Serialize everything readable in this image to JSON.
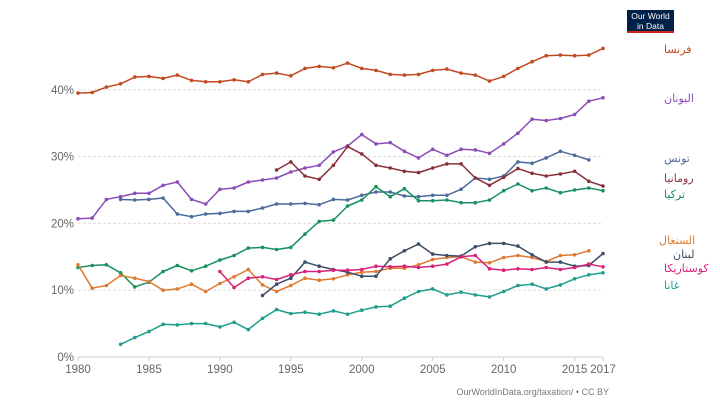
{
  "logo": {
    "line1": "Our World",
    "line2": "in Data"
  },
  "source": "OurWorldInData.org/taxation/ • CC BY",
  "chart_data": {
    "type": "line",
    "title": "",
    "xlabel": "",
    "ylabel": "",
    "xlim": [
      1980,
      2017
    ],
    "ylim": [
      0,
      45
    ],
    "grid": true,
    "x_ticks": [
      {
        "value": 1980,
        "label": "1980"
      },
      {
        "value": 1985,
        "label": "1985"
      },
      {
        "value": 1990,
        "label": "1990"
      },
      {
        "value": 1995,
        "label": "1995"
      },
      {
        "value": 2000,
        "label": "2000"
      },
      {
        "value": 2005,
        "label": "2005"
      },
      {
        "value": 2010,
        "label": "2010"
      },
      {
        "value": 2015,
        "label": "2015"
      },
      {
        "value": 2017,
        "label": "2017"
      }
    ],
    "y_ticks": [
      {
        "value": 0,
        "label": "0%"
      },
      {
        "value": 10,
        "label": "10%"
      },
      {
        "value": 20,
        "label": "20%"
      },
      {
        "value": 30,
        "label": "30%"
      },
      {
        "value": 40,
        "label": "40%"
      }
    ],
    "series": [
      {
        "name": "فرنسا",
        "color": "#c24a22",
        "start": 1980,
        "values": [
          39.5,
          39.6,
          40.4,
          40.9,
          41.9,
          42.0,
          41.7,
          42.2,
          41.4,
          41.2,
          41.2,
          41.5,
          41.2,
          42.3,
          42.5,
          42.1,
          43.2,
          43.5,
          43.3,
          44.0,
          43.2,
          42.9,
          42.3,
          42.2,
          42.3,
          42.9,
          43.1,
          42.5,
          42.2,
          41.3,
          42.0,
          43.2,
          44.2,
          45.1,
          45.2,
          45.1,
          45.2,
          46.2
        ]
      },
      {
        "name": "اليونان",
        "color": "#8a4cb5",
        "start": 1980,
        "values": [
          20.7,
          20.8,
          23.6,
          24.0,
          24.5,
          24.5,
          25.7,
          26.2,
          23.6,
          22.9,
          25.1,
          25.3,
          26.2,
          26.5,
          26.8,
          27.7,
          28.3,
          28.7,
          30.7,
          31.6,
          33.3,
          31.9,
          32.1,
          30.8,
          29.8,
          31.1,
          30.2,
          31.1,
          31.0,
          30.5,
          31.9,
          33.5,
          35.6,
          35.4,
          35.7,
          36.3,
          38.3,
          38.8
        ]
      },
      {
        "name": "تونس",
        "color": "#4c6a9c",
        "start": 1983,
        "values": [
          23.6,
          23.5,
          23.6,
          23.8,
          21.4,
          21.0,
          21.4,
          21.5,
          21.8,
          21.8,
          22.3,
          22.9,
          22.9,
          23.0,
          22.8,
          23.6,
          23.5,
          24.2,
          24.7,
          24.7,
          24.1,
          24.0,
          24.2,
          24.2,
          25.1,
          26.8,
          26.6,
          27.1,
          29.2,
          29.0,
          29.8,
          30.8,
          30.2,
          29.5
        ]
      },
      {
        "name": "رومانيا",
        "color": "#883039",
        "start": 1994,
        "values": [
          28.0,
          29.2,
          27.1,
          26.6,
          28.7,
          31.5,
          30.4,
          28.7,
          28.3,
          27.8,
          27.6,
          28.3,
          28.9,
          28.9,
          26.8,
          25.7,
          26.9,
          28.2,
          27.5,
          27.1,
          27.4,
          27.8,
          26.3,
          25.6
        ]
      },
      {
        "name": "تركيا",
        "color": "#18915e",
        "start": 1980,
        "values": [
          13.4,
          13.7,
          13.8,
          12.6,
          10.5,
          11.2,
          12.8,
          13.7,
          12.9,
          13.6,
          14.5,
          15.2,
          16.3,
          16.4,
          16.1,
          16.4,
          18.4,
          20.3,
          20.5,
          22.6,
          23.5,
          25.5,
          24.0,
          25.2,
          23.4,
          23.4,
          23.5,
          23.1,
          23.1,
          23.5,
          24.9,
          25.9,
          24.9,
          25.3,
          24.6,
          25.0,
          25.3,
          24.9
        ]
      },
      {
        "name": "السنغال",
        "color": "#e07a31",
        "start": 1980,
        "values": [
          13.8,
          10.3,
          10.7,
          12.2,
          11.8,
          11.3,
          10.0,
          10.2,
          10.9,
          9.8,
          11.0,
          12.0,
          13.1,
          10.8,
          9.8,
          10.7,
          11.8,
          11.5,
          11.7,
          12.3,
          12.7,
          12.8,
          13.3,
          13.3,
          13.8,
          14.6,
          14.9,
          15.0,
          14.2,
          14.1,
          14.9,
          15.2,
          14.9,
          14.3,
          15.2,
          15.3,
          15.9
        ]
      },
      {
        "name": "لبنان",
        "color": "#3c4e66",
        "start": 1993,
        "values": [
          9.2,
          10.9,
          11.8,
          14.2,
          13.6,
          13.1,
          12.7,
          12.1,
          12.1,
          14.7,
          15.9,
          16.9,
          15.4,
          15.2,
          15.1,
          16.5,
          17.0,
          17.0,
          16.6,
          15.3,
          14.2,
          14.2,
          13.6,
          13.7,
          15.5
        ]
      },
      {
        "name": "كوستاريكا",
        "color": "#d9207a",
        "start": 1990,
        "values": [
          12.8,
          10.4,
          11.8,
          12.0,
          11.6,
          12.3,
          12.8,
          12.8,
          13.0,
          13.0,
          13.1,
          13.6,
          13.5,
          13.6,
          13.4,
          13.6,
          13.9,
          15.0,
          15.2,
          13.2,
          13.0,
          13.2,
          13.1,
          13.4,
          13.1,
          13.4,
          13.9,
          13.5
        ]
      },
      {
        "name": "غانا",
        "color": "#1f9e8e",
        "start": 1983,
        "values": [
          1.9,
          2.9,
          3.8,
          4.9,
          4.8,
          5.0,
          5.0,
          4.5,
          5.2,
          4.1,
          5.8,
          7.1,
          6.5,
          6.7,
          6.4,
          6.9,
          6.4,
          7.0,
          7.5,
          7.6,
          8.8,
          9.8,
          10.2,
          9.3,
          9.7,
          9.3,
          9.0,
          9.8,
          10.7,
          10.9,
          10.2,
          10.8,
          11.7,
          12.3,
          12.6
        ]
      }
    ]
  }
}
